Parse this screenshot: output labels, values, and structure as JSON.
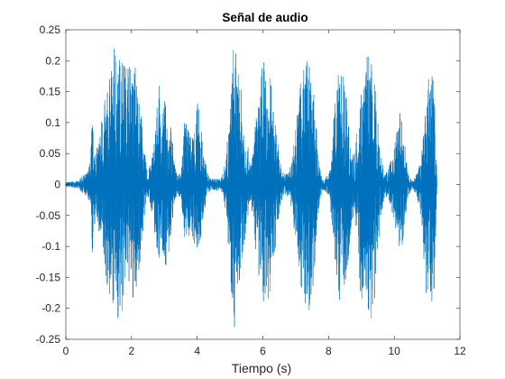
{
  "chart_data": {
    "type": "line",
    "title": "Señal de audio",
    "xlabel": "Tiempo (s)",
    "ylabel": "",
    "xlim": [
      0,
      12
    ],
    "ylim": [
      -0.25,
      0.25
    ],
    "xticks": [
      0,
      2,
      4,
      6,
      8,
      10,
      12
    ],
    "xtick_labels": [
      "0",
      "2",
      "4",
      "6",
      "8",
      "10",
      "12"
    ],
    "yticks": [
      -0.25,
      -0.2,
      -0.15,
      -0.1,
      -0.05,
      0,
      0.05,
      0.1,
      0.15,
      0.2,
      0.25
    ],
    "ytick_labels": [
      "-0.25",
      "-0.2",
      "-0.15",
      "-0.1",
      "-0.05",
      "0",
      "0.05",
      "0.1",
      "0.15",
      "0.2",
      "0.25"
    ],
    "grid": false,
    "box": true,
    "series": [
      {
        "color": "#0072BD",
        "envelope": {
          "t": [
            0.0,
            0.4,
            0.45,
            0.55,
            0.65,
            0.75,
            0.8,
            0.85,
            0.95,
            1.1,
            1.25,
            1.35,
            1.45,
            1.5,
            1.6,
            1.7,
            1.8,
            1.9,
            2.0,
            2.1,
            2.2,
            2.3,
            2.4,
            2.5,
            2.6,
            2.7,
            2.8,
            2.85,
            2.9,
            3.0,
            3.1,
            3.2,
            3.35,
            3.5,
            3.6,
            3.65,
            3.7,
            3.8,
            3.9,
            4.0,
            4.1,
            4.2,
            4.3,
            4.4,
            4.5,
            4.6,
            4.7,
            4.8,
            4.9,
            5.0,
            5.1,
            5.15,
            5.2,
            5.3,
            5.4,
            5.5,
            5.6,
            5.7,
            5.8,
            5.9,
            6.0,
            6.1,
            6.2,
            6.3,
            6.4,
            6.5,
            6.6,
            6.8,
            6.9,
            7.0,
            7.1,
            7.2,
            7.3,
            7.4,
            7.5,
            7.6,
            7.7,
            7.8,
            7.9,
            8.0,
            8.1,
            8.2,
            8.3,
            8.4,
            8.5,
            8.6,
            8.7,
            8.8,
            8.9,
            9.0,
            9.1,
            9.2,
            9.3,
            9.4,
            9.5,
            9.6,
            9.7,
            9.8,
            9.9,
            10.0,
            10.1,
            10.2,
            10.3,
            10.4,
            10.5,
            10.6,
            10.7,
            10.8,
            10.9,
            11.0,
            11.05,
            11.1,
            11.2,
            11.25,
            11.3
          ],
          "upper": [
            0.004,
            0.006,
            0.012,
            0.015,
            0.02,
            0.04,
            0.12,
            0.07,
            0.06,
            0.12,
            0.15,
            0.18,
            0.2,
            0.245,
            0.2,
            0.245,
            0.19,
            0.22,
            0.18,
            0.21,
            0.16,
            0.12,
            0.05,
            0.02,
            0.04,
            0.08,
            0.15,
            0.16,
            0.1,
            0.14,
            0.12,
            0.1,
            0.02,
            0.02,
            0.1,
            0.11,
            0.09,
            0.08,
            0.1,
            0.14,
            0.11,
            0.06,
            0.02,
            0.01,
            0.01,
            0.01,
            0.01,
            0.02,
            0.06,
            0.12,
            0.23,
            0.24,
            0.19,
            0.17,
            0.13,
            0.08,
            0.04,
            0.05,
            0.12,
            0.14,
            0.225,
            0.16,
            0.2,
            0.13,
            0.1,
            0.05,
            0.02,
            0.02,
            0.05,
            0.1,
            0.14,
            0.2,
            0.21,
            0.2,
            0.17,
            0.12,
            0.04,
            0.01,
            0.01,
            0.02,
            0.06,
            0.14,
            0.18,
            0.21,
            0.16,
            0.12,
            0.06,
            0.05,
            0.12,
            0.17,
            0.19,
            0.22,
            0.2,
            0.17,
            0.11,
            0.05,
            0.02,
            0.02,
            0.04,
            0.06,
            0.1,
            0.13,
            0.08,
            0.03,
            0.01,
            0.01,
            0.02,
            0.04,
            0.1,
            0.13,
            0.18,
            0.24,
            0.17,
            0.12,
            0.005
          ],
          "lower": [
            -0.004,
            -0.006,
            -0.012,
            -0.015,
            -0.02,
            -0.04,
            -0.13,
            -0.07,
            -0.06,
            -0.12,
            -0.17,
            -0.2,
            -0.19,
            -0.2,
            -0.23,
            -0.22,
            -0.17,
            -0.16,
            -0.18,
            -0.21,
            -0.15,
            -0.11,
            -0.05,
            -0.02,
            -0.04,
            -0.08,
            -0.12,
            -0.12,
            -0.1,
            -0.13,
            -0.14,
            -0.09,
            -0.02,
            -0.02,
            -0.08,
            -0.11,
            -0.09,
            -0.08,
            -0.1,
            -0.12,
            -0.1,
            -0.05,
            -0.02,
            -0.01,
            -0.01,
            -0.01,
            -0.01,
            -0.02,
            -0.06,
            -0.14,
            -0.22,
            -0.24,
            -0.16,
            -0.19,
            -0.11,
            -0.07,
            -0.04,
            -0.05,
            -0.12,
            -0.16,
            -0.22,
            -0.16,
            -0.2,
            -0.13,
            -0.1,
            -0.05,
            -0.02,
            -0.02,
            -0.05,
            -0.1,
            -0.14,
            -0.18,
            -0.22,
            -0.21,
            -0.18,
            -0.12,
            -0.04,
            -0.01,
            -0.01,
            -0.02,
            -0.06,
            -0.14,
            -0.18,
            -0.2,
            -0.16,
            -0.12,
            -0.07,
            -0.05,
            -0.13,
            -0.2,
            -0.17,
            -0.21,
            -0.22,
            -0.19,
            -0.11,
            -0.05,
            -0.02,
            -0.02,
            -0.04,
            -0.06,
            -0.09,
            -0.12,
            -0.08,
            -0.03,
            -0.01,
            -0.01,
            -0.02,
            -0.05,
            -0.13,
            -0.2,
            -0.2,
            -0.2,
            -0.2,
            -0.11,
            -0.005
          ]
        }
      }
    ]
  }
}
